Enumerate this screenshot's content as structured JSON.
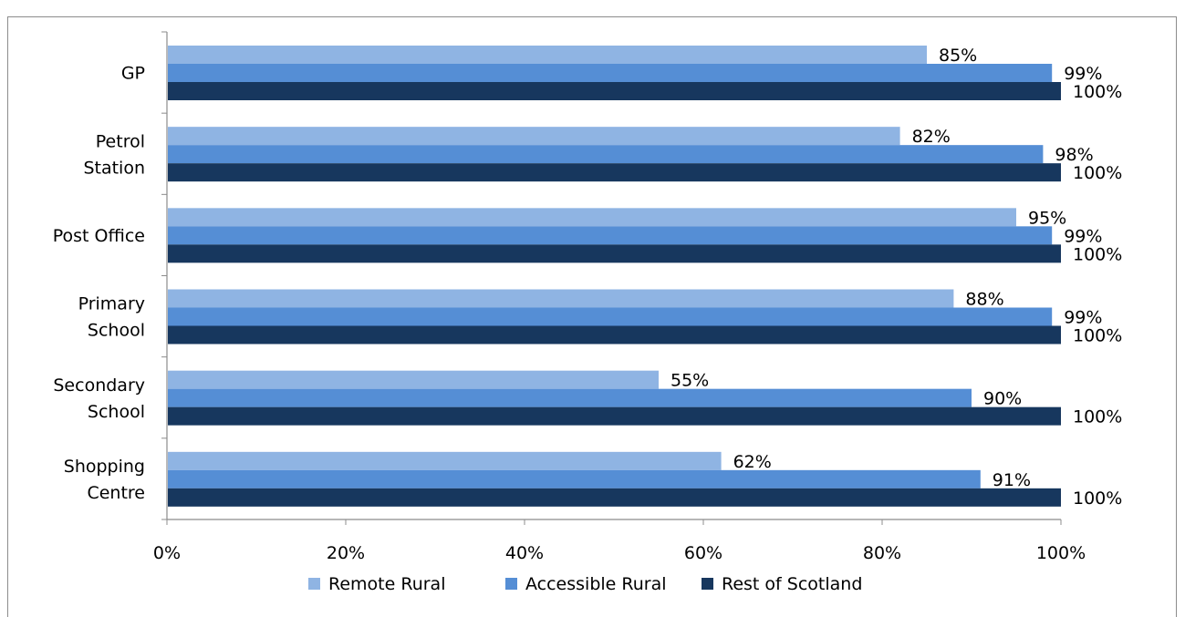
{
  "colors": {
    "remote_rural": "#8fb4e3",
    "accessible_rural": "#558ed5",
    "rest_of_scotland": "#17375e",
    "axis": "#8c8c8c",
    "text": "#000000"
  },
  "chart_data": {
    "type": "bar",
    "orientation": "horizontal",
    "categories": [
      "GP",
      "Petrol Station",
      "Post Office",
      "Primary School",
      "Secondary School",
      "Shopping Centre"
    ],
    "category_lines": [
      [
        "GP"
      ],
      [
        "Petrol",
        "Station"
      ],
      [
        "Post Office"
      ],
      [
        "Primary",
        "School"
      ],
      [
        "Secondary",
        "School"
      ],
      [
        "Shopping",
        "Centre"
      ]
    ],
    "series": [
      {
        "name": "Remote Rural",
        "color": "#8fb4e3",
        "values": [
          85,
          82,
          95,
          88,
          55,
          62
        ],
        "labels": [
          "85%",
          "82%",
          "95%",
          "88%",
          "55%",
          "62%"
        ]
      },
      {
        "name": "Accessible Rural",
        "color": "#558ed5",
        "values": [
          99,
          98,
          99,
          99,
          90,
          91
        ],
        "labels": [
          "99%",
          "98%",
          "99%",
          "99%",
          "90%",
          "91%"
        ]
      },
      {
        "name": "Rest of Scotland",
        "color": "#17375e",
        "values": [
          100,
          100,
          100,
          100,
          100,
          100
        ],
        "labels": [
          "100%",
          "100%",
          "100%",
          "100%",
          "100%",
          "100%"
        ]
      }
    ],
    "xlim": [
      0,
      100
    ],
    "xticks": [
      0,
      20,
      40,
      60,
      80,
      100
    ],
    "xtick_labels": [
      "0%",
      "20%",
      "40%",
      "60%",
      "80%",
      "100%"
    ],
    "legend_position": "bottom",
    "grid": false,
    "title": "",
    "xlabel": "",
    "ylabel": ""
  }
}
